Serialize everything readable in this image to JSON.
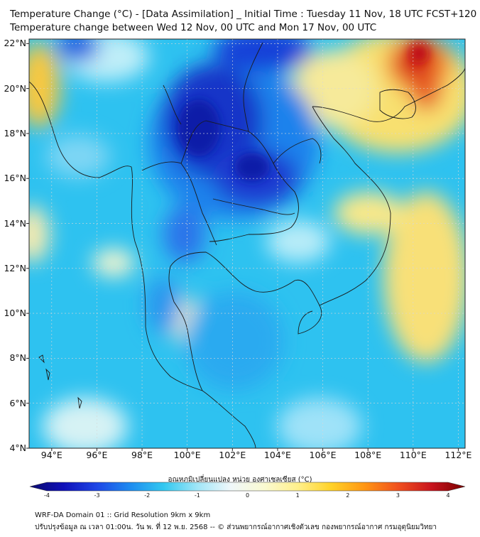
{
  "header": {
    "title_line1": "Temperature Change (°C) - [Data Assimilation] _ Initial Time : Tuesday 11 Nov, 18 UTC FCST+120",
    "title_line2": "Temperature change between Wed 12 Nov, 00 UTC and Mon 17 Nov, 00 UTC"
  },
  "map": {
    "lat_labels": [
      "22°N",
      "20°N",
      "18°N",
      "16°N",
      "14°N",
      "12°N",
      "10°N",
      "8°N",
      "6°N",
      "4°N"
    ],
    "lon_labels": [
      "94°E",
      "96°E",
      "98°E",
      "100°E",
      "102°E",
      "104°E",
      "106°E",
      "108°E",
      "110°E",
      "112°E"
    ],
    "lon_range": [
      93,
      112.3
    ],
    "lat_range": [
      4,
      22.2
    ]
  },
  "colorbar": {
    "title": "อุณหภูมิเปลี่ยนแปลง หน่วย องศาเซลเซียส (°C)",
    "ticks": [
      "-4",
      "-3",
      "-2",
      "-1",
      "0",
      "1",
      "2",
      "3",
      "4"
    ],
    "range": [
      -4,
      4
    ],
    "colors": [
      "#0a0a6e",
      "#1010b8",
      "#1e46e6",
      "#1e8cf0",
      "#32c8f0",
      "#a0e6f8",
      "#f0f8fa",
      "#fafad2",
      "#fff08c",
      "#ffd228",
      "#ff9614",
      "#f0501e",
      "#c8141e",
      "#780000"
    ]
  },
  "footer": {
    "line1": "WRF-DA Domain 01 :: Grid Resolution 9km x 9km",
    "line2": "ปรับปรุงข้อมูล ณ เวลา 01:00น. วัน พ. ที่ 12 พ.ย. 2568 -- © ส่วนพยากรณ์อากาศเชิงตัวเลข กองพยากรณ์อากาศ กรมอุตุนิยมวิทยา"
  }
}
